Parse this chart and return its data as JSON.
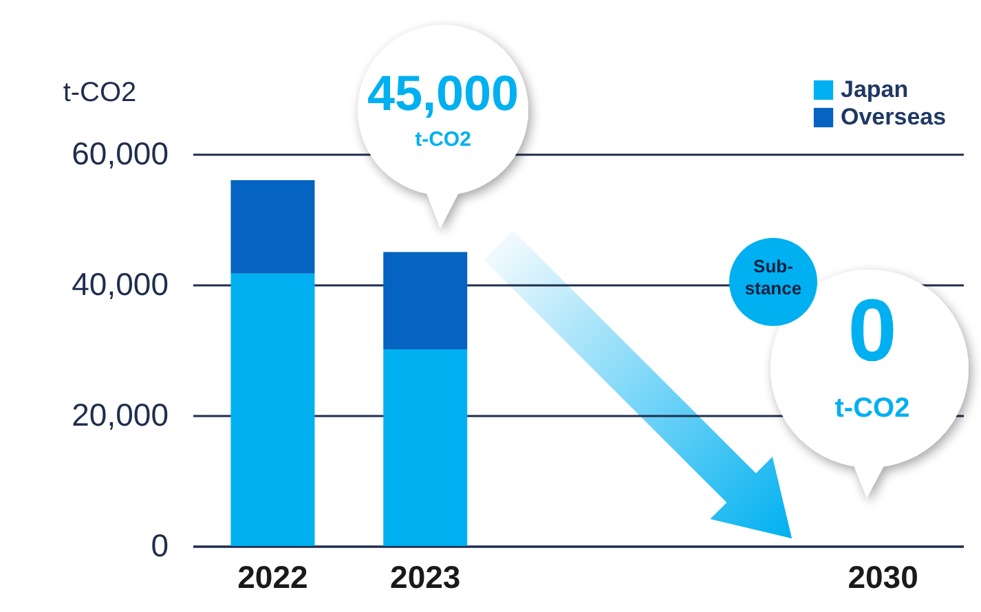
{
  "chart_data": {
    "type": "bar",
    "stacked": true,
    "categories": [
      "2022",
      "2023",
      null,
      null,
      "2030"
    ],
    "series": [
      {
        "name": "Japan",
        "color": "#00b0f0",
        "values": [
          41700,
          30100,
          null,
          null,
          0
        ]
      },
      {
        "name": "Overseas",
        "color": "#0563c1",
        "values": [
          14300,
          14900,
          null,
          null,
          0
        ]
      }
    ],
    "ylabel": "t-CO2",
    "ylim": [
      0,
      60000
    ],
    "yticks": [
      {
        "value": 0,
        "label": "0"
      },
      {
        "value": 20000,
        "label": "20,000"
      },
      {
        "value": 40000,
        "label": "40,000"
      },
      {
        "value": 60000,
        "label": "60,000"
      }
    ],
    "grid": "y",
    "legend": "top right",
    "annotations": [
      "45,000",
      "t-CO2",
      "Sub-stance",
      "0",
      "t-CO2"
    ]
  }
}
